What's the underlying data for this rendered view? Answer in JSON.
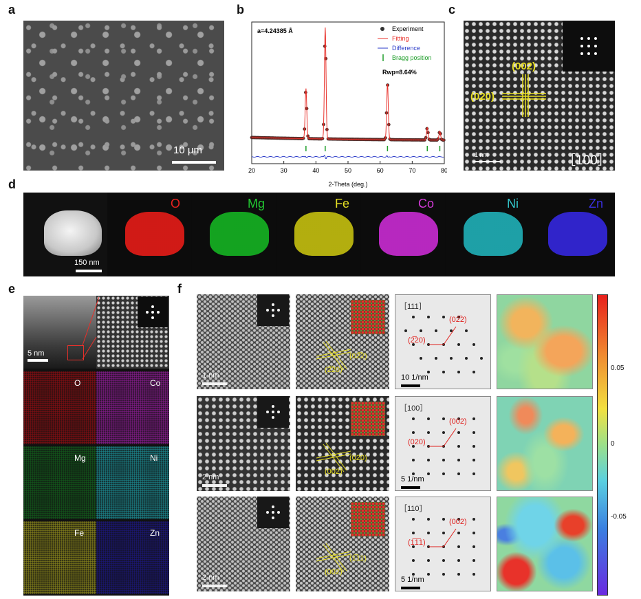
{
  "panel_labels": {
    "a": "a",
    "b": "b",
    "c": "c",
    "d": "d",
    "e": "e",
    "f": "f"
  },
  "panel_a": {
    "scale_bar": "10 μm"
  },
  "panel_b": {
    "lattice_param": "a=4.24385 Å",
    "rwp": "Rwp=8.64%",
    "legend": {
      "experiment": "Experiment",
      "fitting": "Fitting",
      "difference": "Difference",
      "bragg": "Bragg position"
    },
    "colors": {
      "fitting": "#e8302a",
      "difference": "#2a3ac8",
      "bragg": "#1f9e2a"
    }
  },
  "chart_data": {
    "type": "line",
    "xlabel": "2-Theta (deg.)",
    "ylabel": "",
    "xlim": [
      20,
      80
    ],
    "xticks": [
      20,
      30,
      40,
      50,
      60,
      70,
      80
    ],
    "peaks": [
      {
        "x": 36.9,
        "h": 0.45
      },
      {
        "x": 42.9,
        "h": 1.0
      },
      {
        "x": 62.3,
        "h": 0.5
      },
      {
        "x": 74.7,
        "h": 0.11
      },
      {
        "x": 78.6,
        "h": 0.08
      }
    ],
    "bragg_positions": [
      36.9,
      42.9,
      62.3,
      74.7,
      78.6
    ],
    "series": [
      {
        "name": "Experiment"
      },
      {
        "name": "Fitting"
      },
      {
        "name": "Difference"
      }
    ]
  },
  "panel_c": {
    "zone": "［100］",
    "planes": [
      "(002)",
      "(020)"
    ],
    "scale_bar": "1 nm"
  },
  "panel_d": {
    "scale_bar": "150 nm",
    "elements": [
      {
        "name": "O",
        "color": "#e8231f",
        "fill": "#d8201c"
      },
      {
        "name": "Mg",
        "color": "#22c832",
        "fill": "#1fb02c"
      },
      {
        "name": "Fe",
        "color": "#e6e024",
        "fill": "#c4bf1f"
      },
      {
        "name": "Co",
        "color": "#d23ad8",
        "fill": "#c030c8"
      },
      {
        "name": "Ni",
        "color": "#33c6cc",
        "fill": "#2aaeb5"
      },
      {
        "name": "Zn",
        "color": "#3a30e0",
        "fill": "#3528d0"
      }
    ]
  },
  "panel_e": {
    "scale_bar": "5 nm",
    "maps": [
      {
        "name": "O",
        "fill": "#7a0e12"
      },
      {
        "name": "Co",
        "fill": "#7a1a80"
      },
      {
        "name": "Mg",
        "fill": "#12521a"
      },
      {
        "name": "Ni",
        "fill": "#1a7a80"
      },
      {
        "name": "Fe",
        "fill": "#7a761a"
      },
      {
        "name": "Zn",
        "fill": "#1a1670"
      }
    ]
  },
  "panel_f": {
    "rows": [
      {
        "hr_scale": "1 nm",
        "planes": [
          "(2̅20)",
          "(02̅2)"
        ],
        "zone": "［111］",
        "saed_planes": [
          "(02̅2)",
          "(2̅20)"
        ],
        "saed_scale": "10 1/nm"
      },
      {
        "hr_scale": "2 nm",
        "planes": [
          "(002)",
          "(020)"
        ],
        "zone": "［100］",
        "saed_planes": [
          "(002)",
          "(020)"
        ],
        "saed_scale": "5 1/nm"
      },
      {
        "hr_scale": "2 nm",
        "planes": [
          "(002)",
          "(1̅11)"
        ],
        "zone": "［110］",
        "saed_planes": [
          "(002)",
          "(1̅1̅1)"
        ],
        "saed_scale": "5 1/nm"
      }
    ],
    "colorbar": {
      "ticks": [
        "0.05",
        "0",
        "-0.05"
      ],
      "range": [
        -0.08,
        0.08
      ]
    }
  }
}
